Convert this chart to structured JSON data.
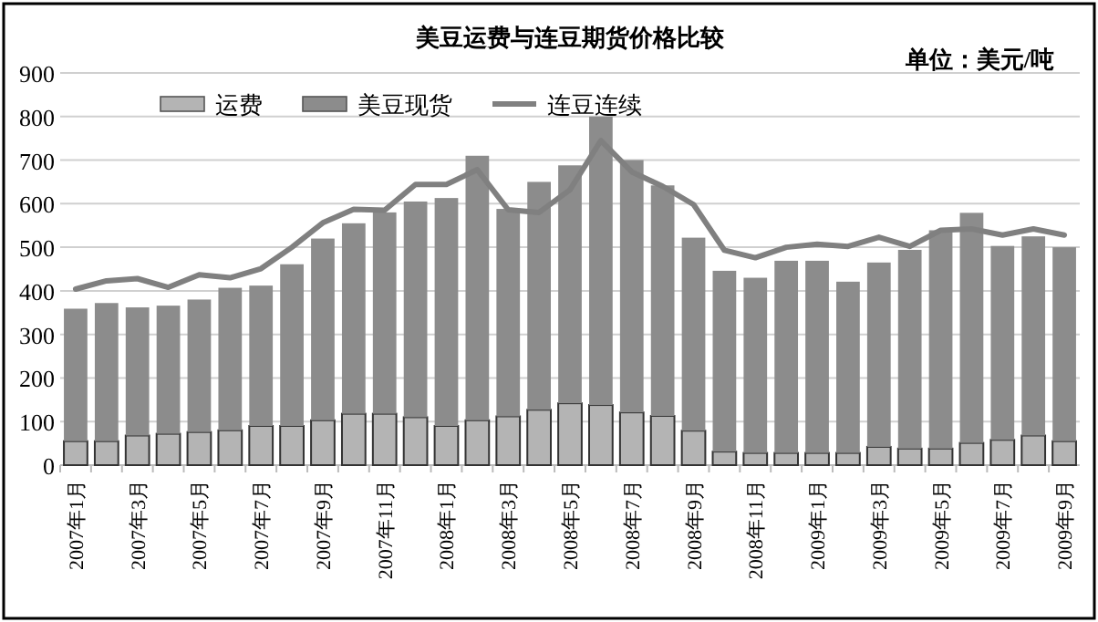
{
  "chart_data": {
    "type": "bar",
    "title": "美豆运费与连豆期货价格比较",
    "annotations": [
      "单位：美元/吨"
    ],
    "categories": [
      "2007年1月",
      null,
      "2007年3月",
      null,
      "2007年5月",
      null,
      "2007年7月",
      null,
      "2007年9月",
      null,
      "2007年11月",
      null,
      "2008年1月",
      null,
      "2008年3月",
      null,
      "2008年5月",
      null,
      "2008年7月",
      null,
      "2008年9月",
      null,
      "2008年11月",
      null,
      "2009年1月",
      null,
      "2009年3月",
      null,
      "2009年5月",
      null,
      "2009年7月",
      null,
      "2009年9月"
    ],
    "series": [
      {
        "name": "运费",
        "color": "#b4b4b4",
        "values": [
          55,
          55,
          68,
          72,
          76,
          80,
          90,
          90,
          103,
          118,
          118,
          110,
          90,
          103,
          112,
          127,
          142,
          138,
          121,
          113,
          79,
          31,
          28,
          28,
          28,
          28,
          42,
          38,
          38,
          51,
          58,
          68,
          55
        ]
      },
      {
        "name": "美豆现货",
        "color": "#8c8c8c",
        "values": [
          304,
          317,
          294,
          294,
          304,
          327,
          322,
          371,
          417,
          437,
          462,
          495,
          523,
          607,
          476,
          523,
          546,
          662,
          579,
          529,
          443,
          415,
          402,
          441,
          441,
          393,
          423,
          456,
          501,
          528,
          445,
          457,
          445
        ]
      },
      {
        "name": "连豆连续",
        "type": "line",
        "color": "#808080",
        "values": [
          404,
          423,
          428,
          408,
          437,
          430,
          451,
          500,
          556,
          587,
          585,
          644,
          644,
          678,
          586,
          580,
          632,
          745,
          673,
          640,
          598,
          493,
          476,
          500,
          507,
          502,
          523,
          502,
          539,
          542,
          528,
          542,
          528
        ]
      }
    ],
    "ylim": [
      0,
      900
    ],
    "yticks": [
      0,
      100,
      200,
      300,
      400,
      500,
      600,
      700,
      800,
      900
    ],
    "grid": "y",
    "legend": "top left",
    "stacked": true
  }
}
